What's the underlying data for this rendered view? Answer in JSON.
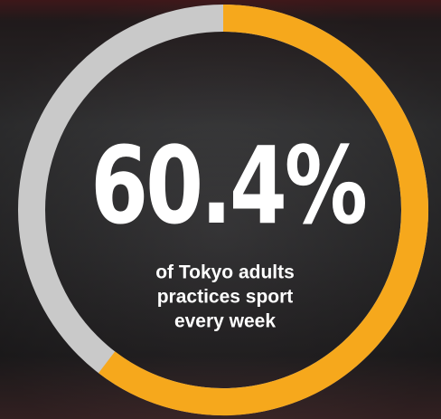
{
  "chart_data": {
    "type": "donut",
    "value": 60.4,
    "value_label": "60.4%",
    "lim": [
      0,
      100
    ],
    "color": "#f6a81c",
    "track_color": "#c9c9c9",
    "caption": [
      "of Tokyo adults",
      "practices sport",
      "every week"
    ]
  }
}
